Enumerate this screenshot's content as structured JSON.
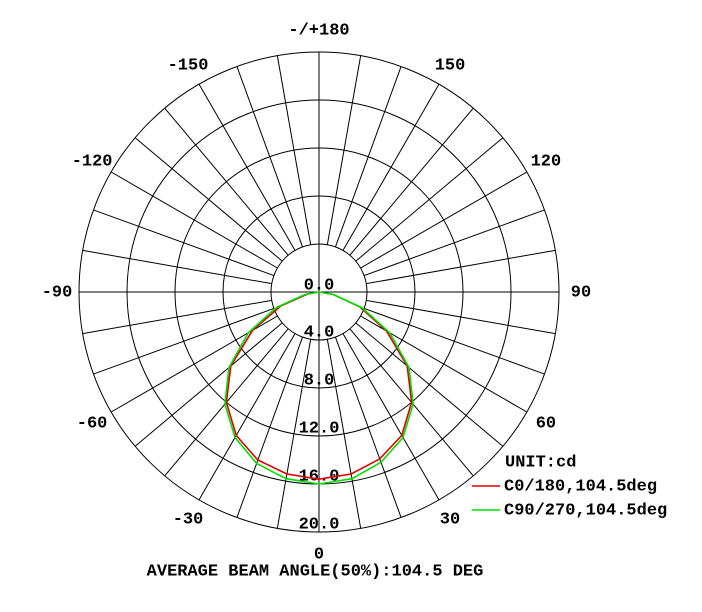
{
  "chart_data": {
    "type": "polar",
    "unit_label": "UNIT:cd",
    "footer": "AVERAGE BEAM ANGLE(50%):104.5 DEG",
    "x": [
      -90,
      -80,
      -70,
      -60,
      -50,
      -40,
      -30,
      -20,
      -10,
      0,
      10,
      20,
      30,
      40,
      50,
      60,
      70,
      80,
      90
    ],
    "series": [
      {
        "name": "C0/180,104.5deg",
        "color": "#e00000",
        "values": [
          0,
          1.0,
          3.4,
          6.4,
          9.6,
          12.0,
          13.8,
          14.9,
          15.4,
          15.6,
          15.4,
          14.8,
          13.8,
          12.0,
          9.6,
          6.5,
          3.6,
          1.2,
          0
        ]
      },
      {
        "name": "C90/270,104.5deg",
        "color": "#00e000",
        "values": [
          0,
          1.2,
          3.8,
          6.8,
          9.8,
          12.2,
          14.0,
          15.2,
          15.8,
          16.0,
          15.8,
          15.1,
          14.0,
          12.2,
          9.8,
          6.8,
          3.8,
          1.2,
          0
        ]
      }
    ],
    "rlim": [
      0,
      20
    ],
    "rticks": [
      {
        "value": 0,
        "label": "0.0"
      },
      {
        "value": 4,
        "label": "4.0"
      },
      {
        "value": 8,
        "label": "8.0"
      },
      {
        "value": 12,
        "label": "12.0"
      },
      {
        "value": 16,
        "label": "16.0"
      },
      {
        "value": 20,
        "label": "20.0"
      }
    ],
    "xticks": [
      {
        "value": 180,
        "label": "-/+180"
      },
      150,
      -150,
      120,
      -120,
      90,
      -90,
      60,
      -60,
      30,
      -30,
      0
    ]
  }
}
